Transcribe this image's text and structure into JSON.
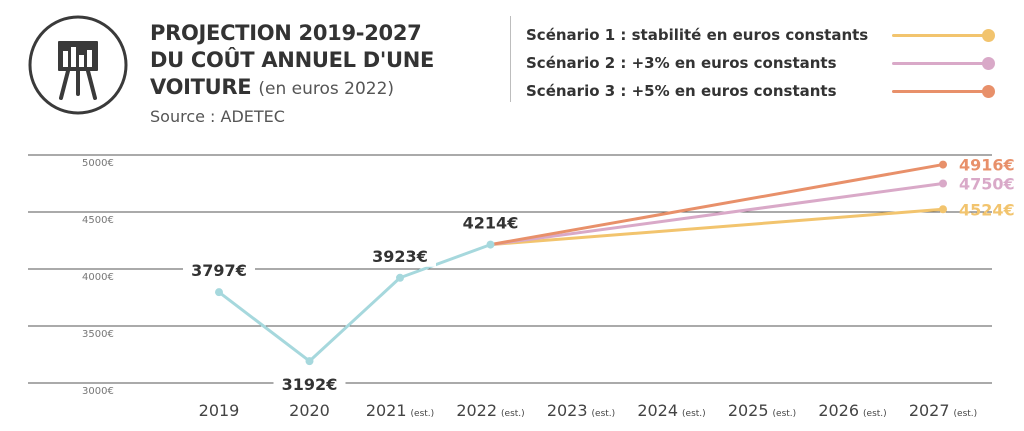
{
  "header": {
    "title_line1": "PROJECTION 2019-2027",
    "title_line2": "DU COÛT ANNUEL D'UNE",
    "title_line3": "VOITURE",
    "title_unit": "(en euros 2022)",
    "source": "Source : ADETEC"
  },
  "legend": [
    {
      "label": "Scénario 1 : stabilité en euros constants",
      "color": "#f2c46e"
    },
    {
      "label": "Scénario 2 : +3% en euros constants",
      "color": "#d9a9c8"
    },
    {
      "label": "Scénario 3 : +5% en euros constants",
      "color": "#e8906a"
    }
  ],
  "chart_data": {
    "type": "line",
    "title": "PROJECTION 2019-2027 DU COÛT ANNUEL D'UNE VOITURE (en euros 2022)",
    "xlabel": "",
    "ylabel": "",
    "ylim": [
      3000,
      5000
    ],
    "grid": true,
    "y_ticks": [
      "5000€",
      "4500€",
      "4000€",
      "3500€",
      "3000€"
    ],
    "y_tick_values": [
      5000,
      4500,
      4000,
      3500,
      3000
    ],
    "categories": [
      "2019",
      "2020",
      "2021",
      "2022",
      "2023",
      "2024",
      "2025",
      "2026",
      "2027"
    ],
    "category_suffixes": [
      "",
      "",
      "(est.)",
      "(est.)",
      "(est.)",
      "(est.)",
      "(est.)",
      "(est.)",
      "(est.)"
    ],
    "historical": {
      "color": "#a6d8dd",
      "points": [
        {
          "x": "2019",
          "y": 3797,
          "label": "3797€"
        },
        {
          "x": "2020",
          "y": 3192,
          "label": "3192€"
        },
        {
          "x": "2021",
          "y": 3923,
          "label": "3923€"
        },
        {
          "x": "2022",
          "y": 4214,
          "label": "4214€"
        }
      ]
    },
    "series": [
      {
        "name": "Scénario 1 : stabilité en euros constants",
        "color": "#f2c46e",
        "start": {
          "x": "2022",
          "y": 4214
        },
        "end": {
          "x": "2027",
          "y": 4524
        },
        "end_label": "4524€"
      },
      {
        "name": "Scénario 2 : +3% en euros constants",
        "color": "#d9a9c8",
        "start": {
          "x": "2022",
          "y": 4214
        },
        "end": {
          "x": "2027",
          "y": 4750
        },
        "end_label": "4750€"
      },
      {
        "name": "Scénario 3 : +5% en euros constants",
        "color": "#e8906a",
        "start": {
          "x": "2022",
          "y": 4214
        },
        "end": {
          "x": "2027",
          "y": 4916
        },
        "end_label": "4916€"
      }
    ]
  }
}
